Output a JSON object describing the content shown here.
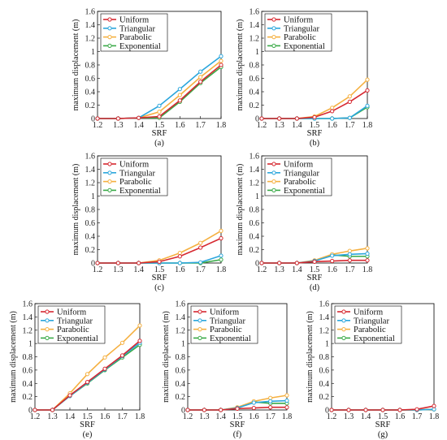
{
  "colors": {
    "Uniform": "#d62830",
    "Triangular": "#2ba6dc",
    "Parabolic": "#f5b040",
    "Exponential": "#3aaa48"
  },
  "chart_data": [
    {
      "id": "a",
      "caption": "(a)",
      "type": "line",
      "xlabel": "SRF",
      "ylabel": "maximum displacement (m)",
      "xlim": [
        1.2,
        1.8
      ],
      "ylim": [
        0,
        1.6
      ],
      "xticks": [
        "1.2",
        "1.3",
        "1.4",
        "1.5",
        "1.6",
        "1.7",
        "1.8"
      ],
      "yticks": [
        "0",
        "0.2",
        "0.4",
        "0.6",
        "0.8",
        "1",
        "1.2",
        "1.4",
        "1.6"
      ],
      "legend": "top-left",
      "grid": false,
      "x": [
        1.2,
        1.3,
        1.4,
        1.5,
        1.6,
        1.7,
        1.8
      ],
      "series": [
        {
          "name": "Uniform",
          "values": [
            0,
            0,
            0.01,
            0.03,
            0.27,
            0.55,
            0.8
          ]
        },
        {
          "name": "Triangular",
          "values": [
            0,
            0,
            0.01,
            0.19,
            0.44,
            0.7,
            0.93
          ]
        },
        {
          "name": "Parabolic",
          "values": [
            0,
            0,
            0.01,
            0.1,
            0.35,
            0.62,
            0.86
          ]
        },
        {
          "name": "Exponential",
          "values": [
            0,
            0,
            0.01,
            0.01,
            0.25,
            0.53,
            0.77
          ]
        }
      ]
    },
    {
      "id": "b",
      "caption": "(b)",
      "type": "line",
      "xlabel": "SRF",
      "ylabel": "maximum displacement (m)",
      "xlim": [
        1.2,
        1.8
      ],
      "ylim": [
        0,
        1.6
      ],
      "xticks": [
        "1.2",
        "1.3",
        "1.4",
        "1.5",
        "1.6",
        "1.7",
        "1.8"
      ],
      "yticks": [
        "0",
        "0.2",
        "0.4",
        "0.6",
        "0.8",
        "1",
        "1.2",
        "1.4",
        "1.6"
      ],
      "legend": "top-left",
      "grid": false,
      "x": [
        1.2,
        1.3,
        1.4,
        1.5,
        1.6,
        1.7,
        1.8
      ],
      "series": [
        {
          "name": "Uniform",
          "values": [
            0,
            0,
            0,
            0.02,
            0.11,
            0.25,
            0.42
          ]
        },
        {
          "name": "Triangular",
          "values": [
            0,
            0,
            0,
            0,
            0,
            0.01,
            0.19
          ]
        },
        {
          "name": "Parabolic",
          "values": [
            0,
            0,
            0,
            0.03,
            0.16,
            0.33,
            0.58
          ]
        },
        {
          "name": "Exponential",
          "values": [
            0,
            0,
            0,
            0,
            0,
            0.01,
            0.17
          ]
        }
      ]
    },
    {
      "id": "c",
      "caption": "(c)",
      "type": "line",
      "xlabel": "SRF",
      "ylabel": "maximum displacement (m)",
      "xlim": [
        1.2,
        1.8
      ],
      "ylim": [
        0,
        1.6
      ],
      "xticks": [
        "1.2",
        "1.3",
        "1.4",
        "1.5",
        "1.6",
        "1.7",
        "1.8"
      ],
      "yticks": [
        "0",
        "0.2",
        "0.4",
        "0.6",
        "0.8",
        "1",
        "1.2",
        "1.4",
        "1.6"
      ],
      "legend": "top-left",
      "grid": false,
      "x": [
        1.2,
        1.3,
        1.4,
        1.5,
        1.6,
        1.7,
        1.8
      ],
      "series": [
        {
          "name": "Uniform",
          "values": [
            0,
            0,
            0,
            0.02,
            0.1,
            0.23,
            0.37
          ]
        },
        {
          "name": "Triangular",
          "values": [
            0,
            0,
            0,
            0,
            0,
            0.01,
            0.11
          ]
        },
        {
          "name": "Parabolic",
          "values": [
            0,
            0,
            0,
            0.04,
            0.15,
            0.3,
            0.48
          ]
        },
        {
          "name": "Exponential",
          "values": [
            0,
            0,
            0,
            0,
            0,
            0,
            0.05
          ]
        }
      ]
    },
    {
      "id": "d",
      "caption": "(d)",
      "type": "line",
      "xlabel": "SRF",
      "ylabel": "maximum displacement (m)",
      "xlim": [
        1.2,
        1.8
      ],
      "ylim": [
        0,
        1.6
      ],
      "xticks": [
        "1.2",
        "1.3",
        "1.4",
        "1.5",
        "1.6",
        "1.7",
        "1.8"
      ],
      "yticks": [
        "0",
        "0.2",
        "0.4",
        "0.6",
        "0.8",
        "1",
        "1.2",
        "1.4",
        "1.6"
      ],
      "legend": "top-left",
      "grid": false,
      "x": [
        1.2,
        1.3,
        1.4,
        1.5,
        1.6,
        1.7,
        1.8
      ],
      "series": [
        {
          "name": "Uniform",
          "values": [
            0,
            0,
            0,
            0.02,
            0.03,
            0.04,
            0.04
          ]
        },
        {
          "name": "Triangular",
          "values": [
            0,
            0,
            0,
            0.03,
            0.11,
            0.13,
            0.14
          ]
        },
        {
          "name": "Parabolic",
          "values": [
            0,
            0,
            0,
            0.04,
            0.13,
            0.18,
            0.22
          ]
        },
        {
          "name": "Exponential",
          "values": [
            0,
            0,
            0,
            0.03,
            0.12,
            0.1,
            0.1
          ]
        }
      ]
    },
    {
      "id": "e",
      "caption": "(e)",
      "type": "line",
      "xlabel": "SRF",
      "ylabel": "maximum displacement (m)",
      "xlim": [
        1.2,
        1.8
      ],
      "ylim": [
        0,
        1.6
      ],
      "xticks": [
        "1.2",
        "1.3",
        "1.4",
        "1.5",
        "1.6",
        "1.7",
        "1.8"
      ],
      "yticks": [
        "0",
        "0.2",
        "0.4",
        "0.6",
        "0.8",
        "1",
        "1.2",
        "1.4",
        "1.6"
      ],
      "legend": "top-left",
      "grid": false,
      "x": [
        1.2,
        1.3,
        1.4,
        1.5,
        1.6,
        1.7,
        1.8
      ],
      "series": [
        {
          "name": "Uniform",
          "values": [
            0,
            0,
            0.22,
            0.42,
            0.62,
            0.82,
            1.04
          ]
        },
        {
          "name": "Triangular",
          "values": [
            0,
            0,
            0.21,
            0.41,
            0.61,
            0.81,
            1.01
          ]
        },
        {
          "name": "Parabolic",
          "values": [
            0,
            0,
            0.25,
            0.54,
            0.79,
            1.01,
            1.27
          ]
        },
        {
          "name": "Exponential",
          "values": [
            0,
            0,
            0.21,
            0.4,
            0.6,
            0.79,
            0.98
          ]
        }
      ]
    },
    {
      "id": "f",
      "caption": "(f)",
      "type": "line",
      "xlabel": "SRF",
      "ylabel": "maximum displacement (m)",
      "xlim": [
        1.2,
        1.8
      ],
      "ylim": [
        0,
        1.6
      ],
      "xticks": [
        "1.2",
        "1.3",
        "1.4",
        "1.5",
        "1.6",
        "1.7",
        "1.8"
      ],
      "yticks": [
        "0",
        "0.2",
        "0.4",
        "0.6",
        "0.8",
        "1",
        "1.2",
        "1.4",
        "1.6"
      ],
      "legend": "top-left",
      "grid": false,
      "x": [
        1.2,
        1.3,
        1.4,
        1.5,
        1.6,
        1.7,
        1.8
      ],
      "series": [
        {
          "name": "Uniform",
          "values": [
            0,
            0,
            0,
            0.02,
            0.03,
            0.04,
            0.04
          ]
        },
        {
          "name": "Triangular",
          "values": [
            0,
            0,
            0,
            0.03,
            0.11,
            0.13,
            0.14
          ]
        },
        {
          "name": "Parabolic",
          "values": [
            0,
            0,
            0,
            0.04,
            0.13,
            0.18,
            0.22
          ]
        },
        {
          "name": "Exponential",
          "values": [
            0,
            0,
            0,
            0.03,
            0.12,
            0.1,
            0.1
          ]
        }
      ]
    },
    {
      "id": "g",
      "caption": "(g)",
      "type": "line",
      "xlabel": "SRF",
      "ylabel": "maximum displacement (m)",
      "xlim": [
        1.2,
        1.8
      ],
      "ylim": [
        0,
        1.6
      ],
      "xticks": [
        "1.2",
        "1.3",
        "1.4",
        "1.5",
        "1.6",
        "1.7",
        "1.8"
      ],
      "yticks": [
        "0",
        "0.2",
        "0.4",
        "0.6",
        "0.8",
        "1",
        "1.2",
        "1.4",
        "1.6"
      ],
      "legend": "top-left",
      "grid": false,
      "x": [
        1.2,
        1.3,
        1.4,
        1.5,
        1.6,
        1.7,
        1.8
      ],
      "series": [
        {
          "name": "Uniform",
          "values": [
            0,
            0,
            0,
            0,
            0,
            0.01,
            0.06
          ]
        },
        {
          "name": "Triangular",
          "values": [
            0,
            0,
            0,
            0,
            0,
            0,
            0.01
          ]
        },
        {
          "name": "Parabolic",
          "values": [
            0,
            0,
            0,
            0,
            0,
            0,
            0.01
          ]
        },
        {
          "name": "Exponential",
          "values": [
            0,
            0,
            0,
            0,
            0,
            0,
            0.01
          ]
        }
      ]
    }
  ]
}
